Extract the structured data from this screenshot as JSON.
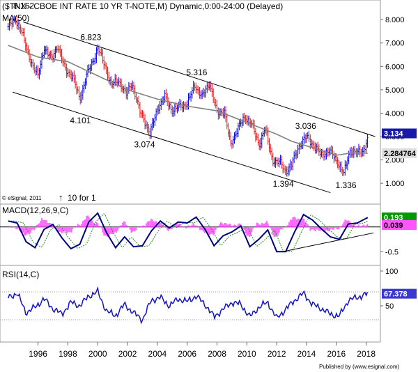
{
  "chart_data": [
    {
      "type": "line",
      "title": "($TNX - CBOE INT RATE 10 YR T-NOTE,M) Dynamic,0:00-24:00 (Delayed)",
      "ma_label": "MA(5",
      "ma_label_tail": "0)",
      "ylim": [
        0.2,
        8.6
      ],
      "y_ticks": [
        "8.000",
        "7.000",
        "6.000",
        "5.000",
        "4.000",
        "3.000",
        "2.000",
        "1.000"
      ],
      "series": [
        {
          "name": "$TNX",
          "x": [
            1994.0,
            1994.5,
            1994.9,
            1995.3,
            1995.8,
            1996.0,
            1996.4,
            1996.9,
            1997.3,
            1997.8,
            1998.3,
            1998.8,
            1999.3,
            1999.8,
            2000.0,
            2000.5,
            2000.9,
            2001.4,
            2001.9,
            2002.3,
            2002.8,
            2003.2,
            2003.5,
            2004.0,
            2004.5,
            2005.0,
            2005.5,
            2006.0,
            2006.5,
            2007.0,
            2007.5,
            2008.0,
            2008.5,
            2008.9,
            2009.4,
            2009.9,
            2010.3,
            2010.8,
            2011.2,
            2011.7,
            2012.2,
            2012.6,
            2013.0,
            2013.5,
            2014.0,
            2014.5,
            2015.0,
            2015.5,
            2016.0,
            2016.5,
            2016.9,
            2017.4,
            2017.8,
            2018.1
          ],
          "values": [
            7.7,
            8.0,
            7.5,
            6.6,
            5.8,
            5.6,
            6.8,
            6.3,
            6.9,
            5.9,
            5.6,
            4.6,
            5.7,
            6.4,
            6.8,
            6.0,
            5.2,
            5.4,
            4.8,
            5.3,
            4.1,
            3.6,
            3.1,
            4.2,
            4.7,
            4.1,
            4.3,
            4.4,
            5.2,
            4.7,
            5.3,
            4.0,
            4.1,
            2.6,
            3.4,
            3.8,
            3.6,
            2.6,
            3.4,
            2.0,
            1.9,
            1.5,
            1.8,
            2.6,
            3.0,
            2.6,
            2.2,
            2.4,
            2.0,
            1.4,
            2.4,
            2.3,
            2.4,
            2.9
          ],
          "last_label": "3.134"
        },
        {
          "name": "MA(50)",
          "x": [
            1994.0,
            1996.0,
            1998.0,
            2000.0,
            2002.0,
            2004.0,
            2006.0,
            2008.0,
            2010.0,
            2012.0,
            2013.0,
            2014.0,
            2015.0,
            2016.0,
            2017.0,
            2018.1
          ],
          "values": [
            6.9,
            6.4,
            6.2,
            5.6,
            5.0,
            4.6,
            4.3,
            4.1,
            3.6,
            3.1,
            2.8,
            2.6,
            2.4,
            2.2,
            2.3,
            2.285
          ],
          "last_label": "2.284764"
        }
      ],
      "annotations": [
        {
          "text": "8.162",
          "x": 1994.9,
          "y": 8.162
        },
        {
          "text": "6.823",
          "x": 1999.4,
          "y": 6.823
        },
        {
          "text": "5.316",
          "x": 2006.5,
          "y": 5.316
        },
        {
          "text": "4.101",
          "x": 1998.7,
          "y": 4.101
        },
        {
          "text": "3.074",
          "x": 2003.0,
          "y": 3.074
        },
        {
          "text": "3.036",
          "x": 2013.8,
          "y": 3.036
        },
        {
          "text": "1.394",
          "x": 2012.3,
          "y": 1.394
        },
        {
          "text": "1.336",
          "x": 2016.5,
          "y": 1.336
        }
      ],
      "channel": {
        "upper": [
          [
            1995.0,
            7.9
          ],
          [
            2018.6,
            3.0
          ]
        ],
        "lower": [
          [
            1994.3,
            4.9
          ],
          [
            2015.6,
            0.6
          ]
        ]
      },
      "footer_left": "© eSignal, 2011",
      "footer_mid": "10 for 1"
    },
    {
      "type": "line",
      "title": "MACD(12,26,9,C)",
      "ylim": [
        -0.75,
        0.42
      ],
      "y_ticks": [
        "-0.5"
      ],
      "series": [
        {
          "name": "MACD",
          "x": [
            1994.0,
            1994.6,
            1995.2,
            1995.8,
            1996.4,
            1997.0,
            1997.6,
            1998.2,
            1998.8,
            1999.4,
            2000.0,
            2000.6,
            2001.2,
            2001.8,
            2002.4,
            2003.0,
            2003.6,
            2004.2,
            2004.8,
            2005.4,
            2006.0,
            2006.6,
            2007.2,
            2007.8,
            2008.4,
            2009.0,
            2009.6,
            2010.2,
            2010.8,
            2011.4,
            2012.0,
            2012.6,
            2013.2,
            2013.8,
            2014.4,
            2015.0,
            2015.6,
            2016.2,
            2016.8,
            2017.4,
            2018.1
          ],
          "values": [
            0.12,
            0.08,
            -0.3,
            -0.42,
            -0.05,
            0.05,
            -0.22,
            -0.44,
            -0.35,
            0.1,
            0.28,
            -0.12,
            -0.42,
            -0.2,
            -0.4,
            -0.38,
            -0.08,
            0.12,
            -0.02,
            0.1,
            0.08,
            0.2,
            -0.05,
            -0.38,
            -0.18,
            -0.1,
            0.02,
            -0.4,
            -0.25,
            -0.06,
            -0.5,
            -0.5,
            -0.1,
            0.25,
            0.14,
            -0.04,
            -0.2,
            -0.25,
            0.06,
            0.08,
            0.19
          ],
          "last_label": "0.193"
        },
        {
          "name": "Signal",
          "last_label": "0.039"
        }
      ]
    },
    {
      "type": "line",
      "title": "RSI(14,C)",
      "ylim": [
        0,
        105
      ],
      "y_ticks": [
        "100",
        "50"
      ],
      "tick_values": [
        100,
        50
      ],
      "levels": [
        70,
        30
      ],
      "x_ticks": [
        "1996",
        "1998",
        "2000",
        "2002",
        "2004",
        "2006",
        "2008",
        "2010",
        "2012",
        "2014",
        "2016",
        "2018"
      ],
      "x_tick_values": [
        1996,
        1998,
        2000,
        2002,
        2004,
        2006,
        2008,
        2010,
        2012,
        2014,
        2016,
        2018
      ],
      "series": [
        {
          "name": "RSI",
          "x": [
            1994.0,
            1994.6,
            1995.2,
            1995.8,
            1996.4,
            1997.0,
            1997.6,
            1998.2,
            1998.8,
            1999.4,
            2000.0,
            2000.6,
            2001.2,
            2001.8,
            2002.4,
            2003.0,
            2003.6,
            2004.2,
            2004.8,
            2005.4,
            2006.0,
            2006.6,
            2007.2,
            2007.8,
            2008.4,
            2009.0,
            2009.6,
            2010.2,
            2010.8,
            2011.4,
            2012.0,
            2012.6,
            2013.2,
            2013.8,
            2014.4,
            2015.0,
            2015.6,
            2016.2,
            2016.8,
            2017.4,
            2018.1
          ],
          "values": [
            62,
            68,
            40,
            48,
            60,
            46,
            38,
            55,
            50,
            64,
            70,
            42,
            36,
            52,
            40,
            30,
            58,
            62,
            50,
            60,
            56,
            64,
            52,
            34,
            45,
            55,
            52,
            34,
            48,
            55,
            32,
            45,
            58,
            68,
            52,
            46,
            38,
            35,
            58,
            62,
            67.378
          ],
          "last_label": "67.378"
        }
      ]
    }
  ],
  "footer": {
    "publisher": "Published by (www.esignal.com)"
  },
  "colors": {
    "price_up": "#0b0bd6",
    "price_down": "#e02020",
    "ma": "#808080",
    "macd": "#00007e",
    "signal": "#1a8f1a",
    "histogram": "#ff66ff",
    "rsi": "#1414c8",
    "macd_label_bg": "#009900",
    "signal_label_bg": "#ff55ff",
    "price_label_bg": "#1a1aaa",
    "ma_label_bg": "#dddddd"
  }
}
